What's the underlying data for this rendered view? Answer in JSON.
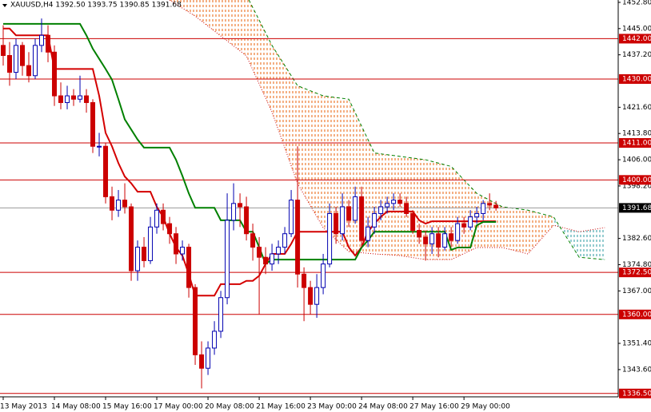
{
  "chart_data": {
    "type": "candlestick",
    "title": "XAUUSD,H4  1392.50 1393.75 1390.85 1391.68",
    "ylim": [
      1335.5,
      1453.5
    ],
    "xlim": [
      -0.5,
      96.1
    ],
    "yticks": [
      {
        "value": 1452.8,
        "label": "1452.80"
      },
      {
        "value": 1445,
        "label": "1445.00"
      },
      {
        "value": 1437.2,
        "label": "1437.20"
      },
      {
        "value": 1421.6,
        "label": "1421.60"
      },
      {
        "value": 1413.8,
        "label": "1413.80"
      },
      {
        "value": 1406,
        "label": "1406.00"
      },
      {
        "value": 1398.2,
        "label": "1398.20"
      },
      {
        "value": 1382.6,
        "label": "1382.60"
      },
      {
        "value": 1374.8,
        "label": "1374.80"
      },
      {
        "value": 1367,
        "label": "1367.00"
      },
      {
        "value": 1351.4,
        "label": "1351.40"
      },
      {
        "value": 1343.6,
        "label": "1343.60"
      }
    ],
    "xticks": [
      {
        "value": 0,
        "label": "13 May 2013"
      },
      {
        "value": 8,
        "label": "14 May 08:00"
      },
      {
        "value": 16,
        "label": "15 May 16:00"
      },
      {
        "value": 24,
        "label": "17 May 00:00"
      },
      {
        "value": 32,
        "label": "20 May 08:00"
      },
      {
        "value": 40,
        "label": "21 May 16:00"
      },
      {
        "value": 48,
        "label": "23 May 00:00"
      },
      {
        "value": 56,
        "label": "24 May 08:00"
      },
      {
        "value": 64,
        "label": "27 May 16:00"
      },
      {
        "value": 72,
        "label": "29 May 00:00"
      }
    ],
    "up_color": "#0000b0",
    "down_color": "#cc0000",
    "candles": [
      [
        1440,
        1446,
        1434,
        1437
      ],
      [
        1437,
        1441,
        1428,
        1432
      ],
      [
        1432,
        1442,
        1430,
        1440
      ],
      [
        1440,
        1441,
        1431,
        1434
      ],
      [
        1434,
        1438,
        1429,
        1431
      ],
      [
        1431,
        1442,
        1430,
        1440
      ],
      [
        1440,
        1448,
        1438,
        1443
      ],
      [
        1443,
        1446,
        1435,
        1438
      ],
      [
        1438,
        1440,
        1422,
        1425
      ],
      [
        1425,
        1429,
        1421,
        1423
      ],
      [
        1423,
        1428,
        1421,
        1425
      ],
      [
        1425,
        1427,
        1422,
        1424
      ],
      [
        1424,
        1431,
        1423,
        1425
      ],
      [
        1425,
        1427,
        1420,
        1423
      ],
      [
        1423,
        1424,
        1408,
        1410
      ],
      [
        1410,
        1414,
        1407,
        1410
      ],
      [
        1410,
        1411,
        1393,
        1395
      ],
      [
        1395,
        1398,
        1388,
        1391
      ],
      [
        1391,
        1397,
        1389,
        1394
      ],
      [
        1394,
        1399,
        1390,
        1392
      ],
      [
        1392,
        1393,
        1370,
        1373
      ],
      [
        1373,
        1382,
        1370,
        1380
      ],
      [
        1380,
        1383,
        1374,
        1376
      ],
      [
        1376,
        1389,
        1375,
        1386
      ],
      [
        1386,
        1393,
        1384,
        1391
      ],
      [
        1391,
        1393,
        1385,
        1387
      ],
      [
        1387,
        1389,
        1381,
        1384
      ],
      [
        1384,
        1386,
        1375,
        1378
      ],
      [
        1378,
        1382,
        1376,
        1380
      ],
      [
        1380,
        1381,
        1365,
        1368
      ],
      [
        1368,
        1369,
        1345,
        1348
      ],
      [
        1348,
        1352,
        1338,
        1344
      ],
      [
        1344,
        1352,
        1342,
        1350
      ],
      [
        1350,
        1358,
        1348,
        1355
      ],
      [
        1355,
        1367,
        1353,
        1365
      ],
      [
        1365,
        1396,
        1363,
        1388
      ],
      [
        1388,
        1399,
        1385,
        1393
      ],
      [
        1393,
        1396,
        1386,
        1392
      ],
      [
        1392,
        1395,
        1382,
        1384
      ],
      [
        1384,
        1387,
        1376,
        1380
      ],
      [
        1380,
        1383,
        1360,
        1377
      ],
      [
        1377,
        1380,
        1372,
        1375
      ],
      [
        1375,
        1381,
        1373,
        1378
      ],
      [
        1378,
        1382,
        1375,
        1380
      ],
      [
        1380,
        1386,
        1378,
        1384
      ],
      [
        1384,
        1397,
        1383,
        1394
      ],
      [
        1394,
        1410,
        1368,
        1372
      ],
      [
        1372,
        1374,
        1358,
        1368
      ],
      [
        1368,
        1370,
        1360,
        1363
      ],
      [
        1363,
        1372,
        1359,
        1368
      ],
      [
        1368,
        1378,
        1366,
        1375
      ],
      [
        1375,
        1393,
        1374,
        1390
      ],
      [
        1390,
        1392,
        1381,
        1384
      ],
      [
        1384,
        1396,
        1382,
        1392
      ],
      [
        1392,
        1394,
        1386,
        1388
      ],
      [
        1388,
        1398,
        1387,
        1395
      ],
      [
        1395,
        1398,
        1380,
        1382
      ],
      [
        1382,
        1389,
        1380,
        1386
      ],
      [
        1386,
        1392,
        1384,
        1390
      ],
      [
        1390,
        1394,
        1388,
        1392
      ],
      [
        1392,
        1395,
        1390,
        1393
      ],
      [
        1393,
        1396,
        1391,
        1394
      ],
      [
        1394,
        1396,
        1392,
        1393
      ],
      [
        1393,
        1395,
        1389,
        1390
      ],
      [
        1390,
        1391,
        1384,
        1385
      ],
      [
        1385,
        1387,
        1381,
        1383
      ],
      [
        1383,
        1385,
        1376,
        1381
      ],
      [
        1381,
        1386,
        1378,
        1384
      ],
      [
        1384,
        1386,
        1377,
        1380
      ],
      [
        1380,
        1386,
        1379,
        1384
      ],
      [
        1384,
        1386,
        1380,
        1382
      ],
      [
        1382,
        1389,
        1381,
        1387
      ],
      [
        1387,
        1389,
        1384,
        1386
      ],
      [
        1386,
        1391,
        1385,
        1389
      ],
      [
        1389,
        1392,
        1387,
        1390
      ],
      [
        1390,
        1394,
        1388,
        1393
      ],
      [
        1393,
        1396,
        1391,
        1392.5
      ],
      [
        1392.5,
        1393.75,
        1390.85,
        1391.68
      ]
    ],
    "lines": [
      {
        "color": "#d40000",
        "values": [
          1445,
          1445,
          1443,
          1443,
          1443,
          1443,
          1443,
          1443,
          1433,
          1433,
          1433,
          1433,
          1433,
          1433,
          1433,
          1425,
          1414,
          1410,
          1405,
          1401,
          1399,
          1396.5,
          1396.5,
          1396.5,
          1392,
          1389,
          1384,
          1380,
          1377.5,
          1372,
          1365.6,
          1365.6,
          1365.6,
          1365.6,
          1369,
          1369,
          1369,
          1369,
          1370,
          1370,
          1371.5,
          1375,
          1378,
          1378,
          1378,
          1381,
          1384.6,
          1384.6,
          1384.6,
          1384.6,
          1384.6,
          1384.6,
          1384.6,
          1384.6,
          1380,
          1377.5,
          1380,
          1384.6,
          1387,
          1389,
          1390.6,
          1390.6,
          1390.6,
          1390.6,
          1390.6,
          1388,
          1387,
          1387.7,
          1387.7,
          1387.7,
          1387.7,
          1387.7,
          1387.7,
          1387.7,
          1387.7,
          1387.7,
          1387.7,
          1387.7
        ]
      },
      {
        "color": "#008000",
        "values": [
          1446.4,
          1446.4,
          1446.4,
          1446.4,
          1446.4,
          1446.4,
          1446.4,
          1446.4,
          1446.4,
          1446.4,
          1446.4,
          1446.4,
          1446.4,
          1443,
          1439,
          1436,
          1433,
          1429.8,
          1424,
          1418,
          1415,
          1412,
          1409.6,
          1409.6,
          1409.6,
          1409.6,
          1409.6,
          1406,
          1401.2,
          1396,
          1391.7,
          1391.7,
          1391.7,
          1391.7,
          1388,
          1388,
          1388,
          1388,
          1384.6,
          1384.6,
          1380,
          1375,
          1376.3,
          1376.3,
          1376.3,
          1376.3,
          1376.3,
          1376.3,
          1376.3,
          1376.3,
          1376.3,
          1376.3,
          1376.3,
          1376.3,
          1376.3,
          1376.3,
          1379.9,
          1382,
          1384.6,
          1384.6,
          1384.6,
          1384.6,
          1384.6,
          1384.6,
          1384.6,
          1384.6,
          1384.6,
          1384.6,
          1384.6,
          1384.6,
          1379.2,
          1379.9,
          1379.9,
          1379.9,
          1386.5,
          1387.5,
          1387.5,
          1387.5
        ]
      }
    ],
    "cloud": {
      "x": [
        26,
        30,
        34,
        38,
        42,
        46,
        50,
        54,
        58,
        62,
        66,
        70,
        74,
        78,
        82,
        86,
        90,
        94
      ],
      "span_a": {
        "color": "#cc0000",
        "values": [
          1453.5,
          1448.7,
          1442.8,
          1436.9,
          1420.2,
          1398.9,
          1385.8,
          1378.7,
          1378,
          1377.5,
          1376.3,
          1376.3,
          1379.9,
          1379.9,
          1378,
          1386.5,
          1384.6,
          1385.8
        ]
      },
      "span_b": {
        "color": "#008000",
        "values": [
          1465,
          1462,
          1458,
          1455,
          1440,
          1428,
          1425,
          1424,
          1408,
          1407,
          1406,
          1404,
          1396,
          1392,
          1391,
          1389,
          1377,
          1376.3
        ]
      },
      "fill_colors": [
        "#e8600a",
        "#2a9aa0"
      ]
    },
    "levels": [
      {
        "value": 1442,
        "label": "1442.00"
      },
      {
        "value": 1430,
        "label": "1430.00"
      },
      {
        "value": 1411,
        "label": "1411.00"
      },
      {
        "value": 1400,
        "label": "1400.00"
      },
      {
        "value": 1372.5,
        "label": "1372.50"
      },
      {
        "value": 1360,
        "label": "1360.00"
      },
      {
        "value": 1336.5,
        "label": "1336.50"
      }
    ],
    "level_color": "#cc0000",
    "current_price": {
      "value": 1391.68,
      "label": "1391.68"
    }
  }
}
